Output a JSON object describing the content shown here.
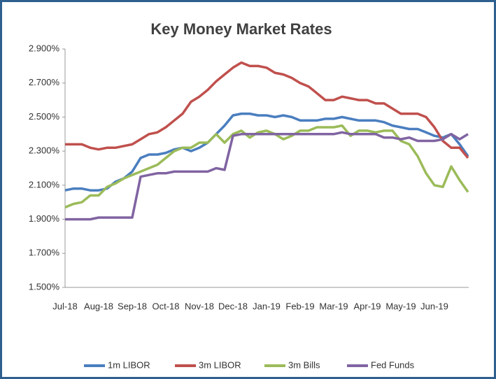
{
  "chart_data": {
    "type": "line",
    "title": "Key Money Market Rates",
    "categories": [
      "Jul-18",
      null,
      null,
      null,
      "Aug-18",
      null,
      null,
      null,
      "Sep-18",
      null,
      null,
      null,
      "Oct-18",
      null,
      null,
      null,
      "Nov-18",
      null,
      null,
      null,
      "Dec-18",
      null,
      null,
      null,
      "Jan-19",
      null,
      null,
      null,
      "Feb-19",
      null,
      null,
      null,
      "Mar-19",
      null,
      null,
      null,
      "Apr-19",
      null,
      null,
      null,
      "May-19",
      null,
      null,
      null,
      "Jun-19",
      null,
      null,
      null,
      null
    ],
    "series": [
      {
        "name": "1m LIBOR",
        "color": "#4a7ebf",
        "values": [
          2.07,
          2.08,
          2.08,
          2.07,
          2.07,
          2.08,
          2.12,
          2.14,
          2.18,
          2.26,
          2.28,
          2.28,
          2.29,
          2.31,
          2.32,
          2.3,
          2.32,
          2.35,
          2.4,
          2.45,
          2.51,
          2.52,
          2.52,
          2.51,
          2.51,
          2.5,
          2.51,
          2.5,
          2.48,
          2.48,
          2.48,
          2.49,
          2.49,
          2.5,
          2.49,
          2.48,
          2.48,
          2.48,
          2.47,
          2.45,
          2.44,
          2.43,
          2.43,
          2.41,
          2.39,
          2.38,
          2.4,
          2.34,
          2.27
        ]
      },
      {
        "name": "3m LIBOR",
        "color": "#c0504d",
        "values": [
          2.34,
          2.34,
          2.34,
          2.32,
          2.31,
          2.32,
          2.32,
          2.33,
          2.34,
          2.37,
          2.4,
          2.41,
          2.44,
          2.48,
          2.52,
          2.59,
          2.62,
          2.66,
          2.71,
          2.75,
          2.79,
          2.82,
          2.8,
          2.8,
          2.79,
          2.76,
          2.75,
          2.73,
          2.7,
          2.68,
          2.64,
          2.6,
          2.6,
          2.62,
          2.61,
          2.6,
          2.6,
          2.58,
          2.58,
          2.55,
          2.52,
          2.52,
          2.52,
          2.5,
          2.44,
          2.36,
          2.32,
          2.32,
          2.26
        ]
      },
      {
        "name": "3m Bills",
        "color": "#9bbb59",
        "values": [
          1.97,
          1.99,
          2.0,
          2.04,
          2.04,
          2.09,
          2.11,
          2.14,
          2.16,
          2.18,
          2.2,
          2.22,
          2.26,
          2.3,
          2.32,
          2.32,
          2.35,
          2.35,
          2.4,
          2.35,
          2.4,
          2.42,
          2.38,
          2.41,
          2.42,
          2.4,
          2.37,
          2.39,
          2.42,
          2.42,
          2.44,
          2.44,
          2.44,
          2.45,
          2.39,
          2.42,
          2.42,
          2.41,
          2.42,
          2.42,
          2.36,
          2.34,
          2.27,
          2.17,
          2.1,
          2.09,
          2.21,
          2.13,
          2.06
        ]
      },
      {
        "name": "Fed Funds",
        "color": "#8064a2",
        "values": [
          1.9,
          1.9,
          1.9,
          1.9,
          1.91,
          1.91,
          1.91,
          1.91,
          1.91,
          2.15,
          2.16,
          2.17,
          2.17,
          2.18,
          2.18,
          2.18,
          2.18,
          2.18,
          2.2,
          2.19,
          2.39,
          2.4,
          2.4,
          2.4,
          2.4,
          2.4,
          2.4,
          2.4,
          2.4,
          2.4,
          2.4,
          2.4,
          2.4,
          2.41,
          2.4,
          2.4,
          2.4,
          2.4,
          2.38,
          2.38,
          2.37,
          2.38,
          2.36,
          2.36,
          2.36,
          2.37,
          2.4,
          2.37,
          2.4
        ]
      }
    ],
    "ylim": [
      1.5,
      2.9
    ],
    "yticks": [
      {
        "value": 1.5,
        "label": "1.500%"
      },
      {
        "value": 1.7,
        "label": "1.700%"
      },
      {
        "value": 1.9,
        "label": "1.900%"
      },
      {
        "value": 2.1,
        "label": "2.100%"
      },
      {
        "value": 2.3,
        "label": "2.300%"
      },
      {
        "value": 2.5,
        "label": "2.500%"
      },
      {
        "value": 2.7,
        "label": "2.700%"
      },
      {
        "value": 2.9,
        "label": "2.900%"
      }
    ],
    "grid": false,
    "legend": "bottom"
  }
}
